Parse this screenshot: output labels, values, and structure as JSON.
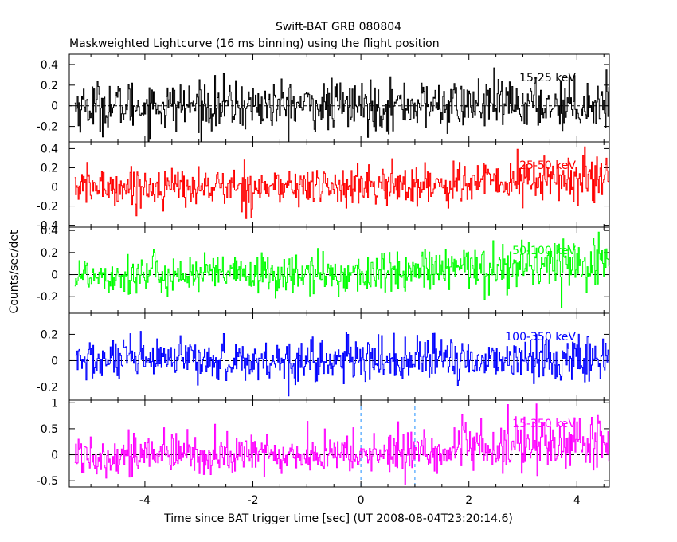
{
  "figure": {
    "title": "Swift-BAT GRB 080804",
    "subtitle": "Maskweighted Lightcurve (16 ms binning) using the flight position",
    "xlabel": "Time since BAT trigger time [sec] (UT 2008-08-04T23:20:14.6)",
    "ylabel": "Counts/sec/det"
  },
  "colors": {
    "axes": "#000000",
    "band1": "#000000",
    "band2": "#ff0000",
    "band3": "#00ff00",
    "band4": "#0000ff",
    "band5": "#ff00ff",
    "marker": "#1e90ff"
  },
  "chart_data": [
    {
      "type": "line",
      "series": [
        {
          "name": "15-25 keV",
          "color": "#000000"
        }
      ],
      "x_range": [
        -5.4,
        4.6
      ],
      "y_range": [
        -0.35,
        0.5
      ],
      "envelope": {
        "start_amp": 0.12,
        "end_amp": 0.12,
        "start_mean": 0.0,
        "end_mean": 0.02
      },
      "yticks": [
        -0.2,
        0,
        0.2,
        0.4
      ],
      "ytick_labels": [
        "-0.2",
        "0",
        "0.2",
        "0.4"
      ],
      "xticks": [
        -4,
        -2,
        0,
        2,
        4
      ],
      "xtick_labels": [
        "-4",
        "-2",
        "0",
        "2",
        "4"
      ],
      "zero_line": true
    },
    {
      "type": "line",
      "series": [
        {
          "name": "25-50 keV",
          "color": "#ff0000"
        }
      ],
      "x_range": [
        -5.4,
        4.6
      ],
      "y_range": [
        -0.42,
        0.47
      ],
      "envelope": {
        "start_amp": 0.1,
        "end_amp": 0.14,
        "start_mean": 0.0,
        "end_mean": 0.09
      },
      "yticks": [
        -0.4,
        -0.2,
        0,
        0.2,
        0.4
      ],
      "ytick_labels": [
        "-0.4",
        "-0.2",
        "0",
        "0.2",
        "0.4"
      ],
      "xticks": [
        -4,
        -2,
        0,
        2,
        4
      ],
      "xtick_labels": [
        "-4",
        "-2",
        "0",
        "2",
        "4"
      ],
      "zero_line": true
    },
    {
      "type": "line",
      "series": [
        {
          "name": "50-100 keV",
          "color": "#00ff00"
        }
      ],
      "x_range": [
        -5.4,
        4.6
      ],
      "y_range": [
        -0.35,
        0.43
      ],
      "envelope": {
        "start_amp": 0.09,
        "end_amp": 0.13,
        "start_mean": 0.0,
        "end_mean": 0.13
      },
      "yticks": [
        -0.2,
        0,
        0.2,
        0.4
      ],
      "ytick_labels": [
        "-0.2",
        "0",
        "0.2",
        "0.4"
      ],
      "xticks": [
        -4,
        -2,
        0,
        2,
        4
      ],
      "xtick_labels": [
        "-4",
        "-2",
        "0",
        "2",
        "4"
      ],
      "zero_line": true
    },
    {
      "type": "line",
      "series": [
        {
          "name": "100-350 keV",
          "color": "#0000ff"
        }
      ],
      "x_range": [
        -5.4,
        4.6
      ],
      "y_range": [
        -0.3,
        0.36
      ],
      "envelope": {
        "start_amp": 0.08,
        "end_amp": 0.09,
        "start_mean": 0.0,
        "end_mean": 0.02
      },
      "yticks": [
        -0.2,
        0,
        0.2
      ],
      "ytick_labels": [
        "-0.2",
        "0",
        "0.2"
      ],
      "xticks": [
        -4,
        -2,
        0,
        2,
        4
      ],
      "xtick_labels": [
        "-4",
        "-2",
        "0",
        "2",
        "4"
      ],
      "zero_line": true
    },
    {
      "type": "line",
      "series": [
        {
          "name": "15-350 keV",
          "color": "#ff00ff"
        }
      ],
      "x_range": [
        -5.4,
        4.6
      ],
      "y_range": [
        -0.62,
        1.05
      ],
      "envelope": {
        "start_amp": 0.2,
        "end_amp": 0.3,
        "start_mean": 0.0,
        "end_mean": 0.25
      },
      "yticks": [
        -0.5,
        0,
        0.5,
        1
      ],
      "ytick_labels": [
        "-0.5",
        "0",
        "0.5",
        "1"
      ],
      "xticks": [
        -4,
        -2,
        0,
        2,
        4
      ],
      "xtick_labels": [
        "-4",
        "-2",
        "0",
        "2",
        "4"
      ],
      "zero_line": true,
      "markers_x": [
        0,
        1.0
      ]
    }
  ]
}
